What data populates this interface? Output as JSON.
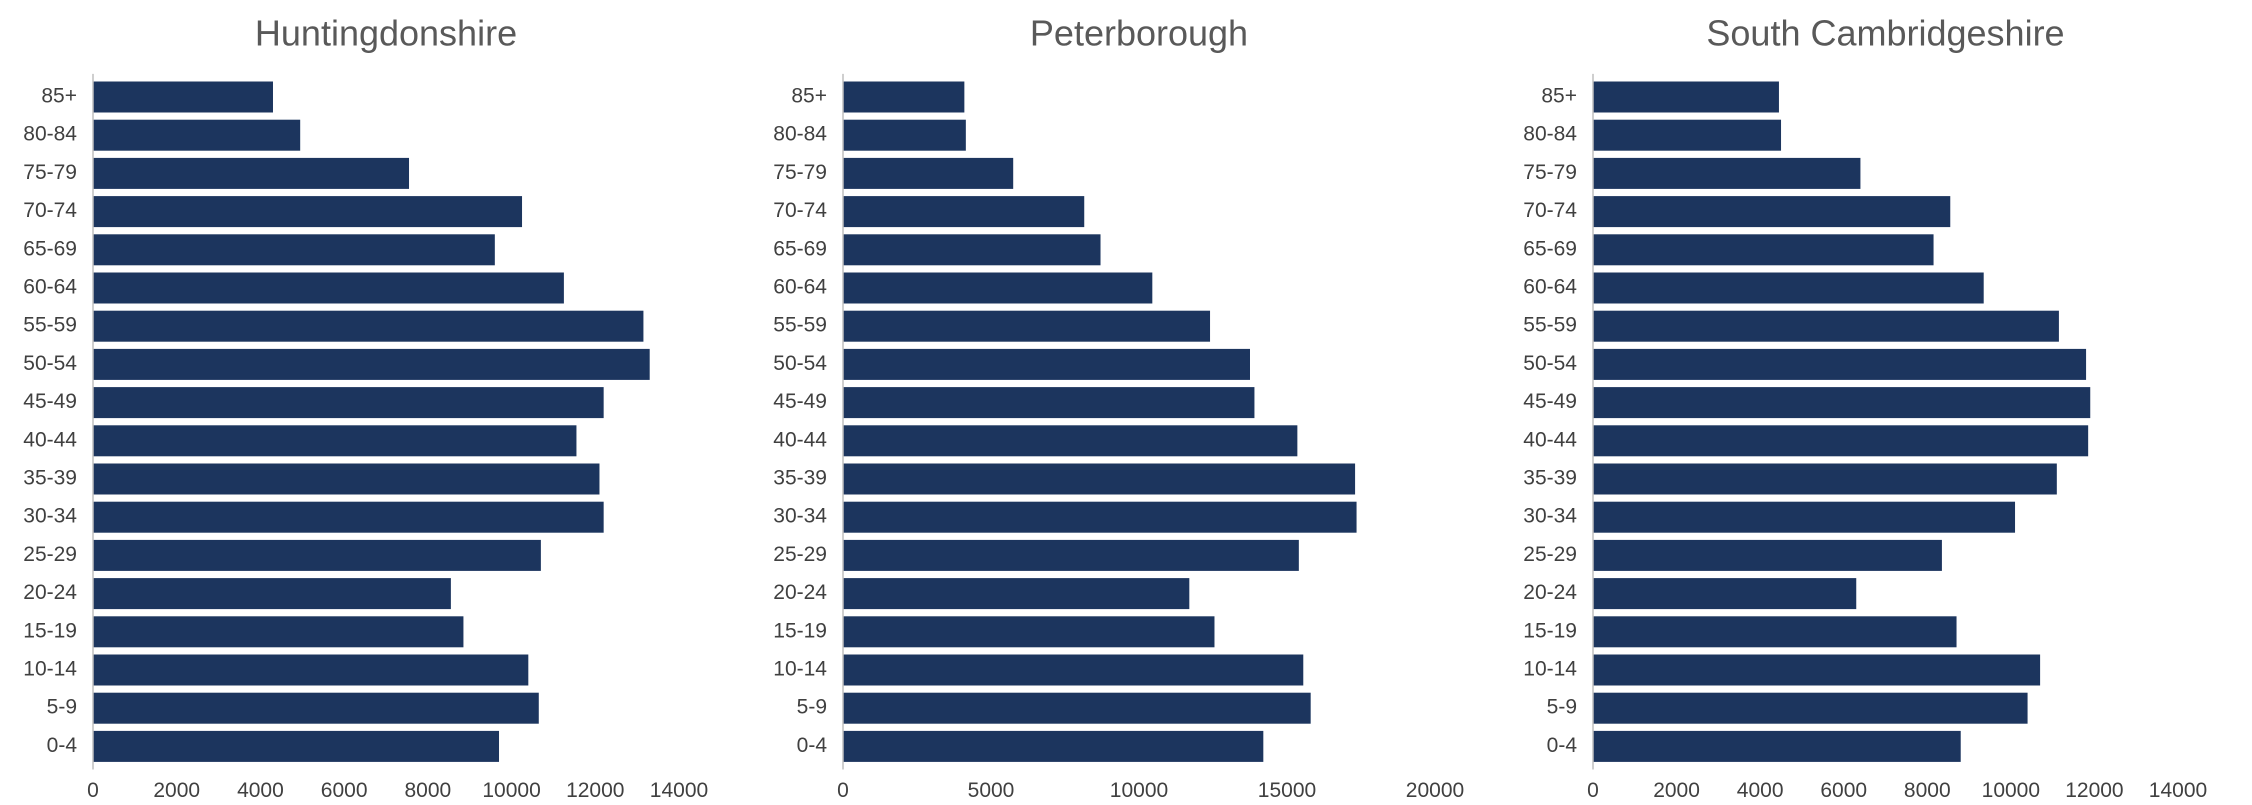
{
  "colors": {
    "bar": "#1c355e",
    "axis": "#bfbfbf",
    "text": "#404040",
    "title": "#595959"
  },
  "chart_data": [
    {
      "type": "bar",
      "orientation": "horizontal",
      "title": "Huntingdonshire",
      "categories": [
        "85+",
        "80-84",
        "75-79",
        "70-74",
        "65-69",
        "60-64",
        "55-59",
        "50-54",
        "45-49",
        "40-44",
        "35-39",
        "30-34",
        "25-29",
        "20-24",
        "15-19",
        "10-14",
        "5-9",
        "0-4"
      ],
      "values": [
        4300,
        4950,
        7550,
        10250,
        9600,
        11250,
        13150,
        13300,
        12200,
        11550,
        12100,
        12200,
        10700,
        8550,
        8850,
        10400,
        10650,
        9700
      ],
      "xlim": [
        0,
        14000
      ],
      "xticks": [
        0,
        2000,
        4000,
        6000,
        8000,
        10000,
        12000,
        14000
      ],
      "grid": false
    },
    {
      "type": "bar",
      "orientation": "horizontal",
      "title": "Peterborough",
      "categories": [
        "85+",
        "80-84",
        "75-79",
        "70-74",
        "65-69",
        "60-64",
        "55-59",
        "50-54",
        "45-49",
        "40-44",
        "35-39",
        "30-34",
        "25-29",
        "20-24",
        "15-19",
        "10-14",
        "5-9",
        "0-4"
      ],
      "values": [
        4100,
        4150,
        5750,
        8150,
        8700,
        10450,
        12400,
        13750,
        13900,
        15350,
        17300,
        17350,
        15400,
        11700,
        12550,
        15550,
        15800,
        14200
      ],
      "xlim": [
        0,
        20000
      ],
      "xticks": [
        0,
        5000,
        10000,
        15000,
        20000
      ],
      "grid": false
    },
    {
      "type": "bar",
      "orientation": "horizontal",
      "title": "South Cambridgeshire",
      "categories": [
        "85+",
        "80-84",
        "75-79",
        "70-74",
        "65-69",
        "60-64",
        "55-59",
        "50-54",
        "45-49",
        "40-44",
        "35-39",
        "30-34",
        "25-29",
        "20-24",
        "15-19",
        "10-14",
        "5-9",
        "0-4"
      ],
      "values": [
        4450,
        4500,
        6400,
        8550,
        8150,
        9350,
        11150,
        11800,
        11900,
        11850,
        11100,
        10100,
        8350,
        6300,
        8700,
        10700,
        10400,
        8800
      ],
      "xlim": [
        0,
        14000
      ],
      "xticks": [
        0,
        2000,
        4000,
        6000,
        8000,
        10000,
        12000,
        14000
      ],
      "grid": false
    }
  ]
}
